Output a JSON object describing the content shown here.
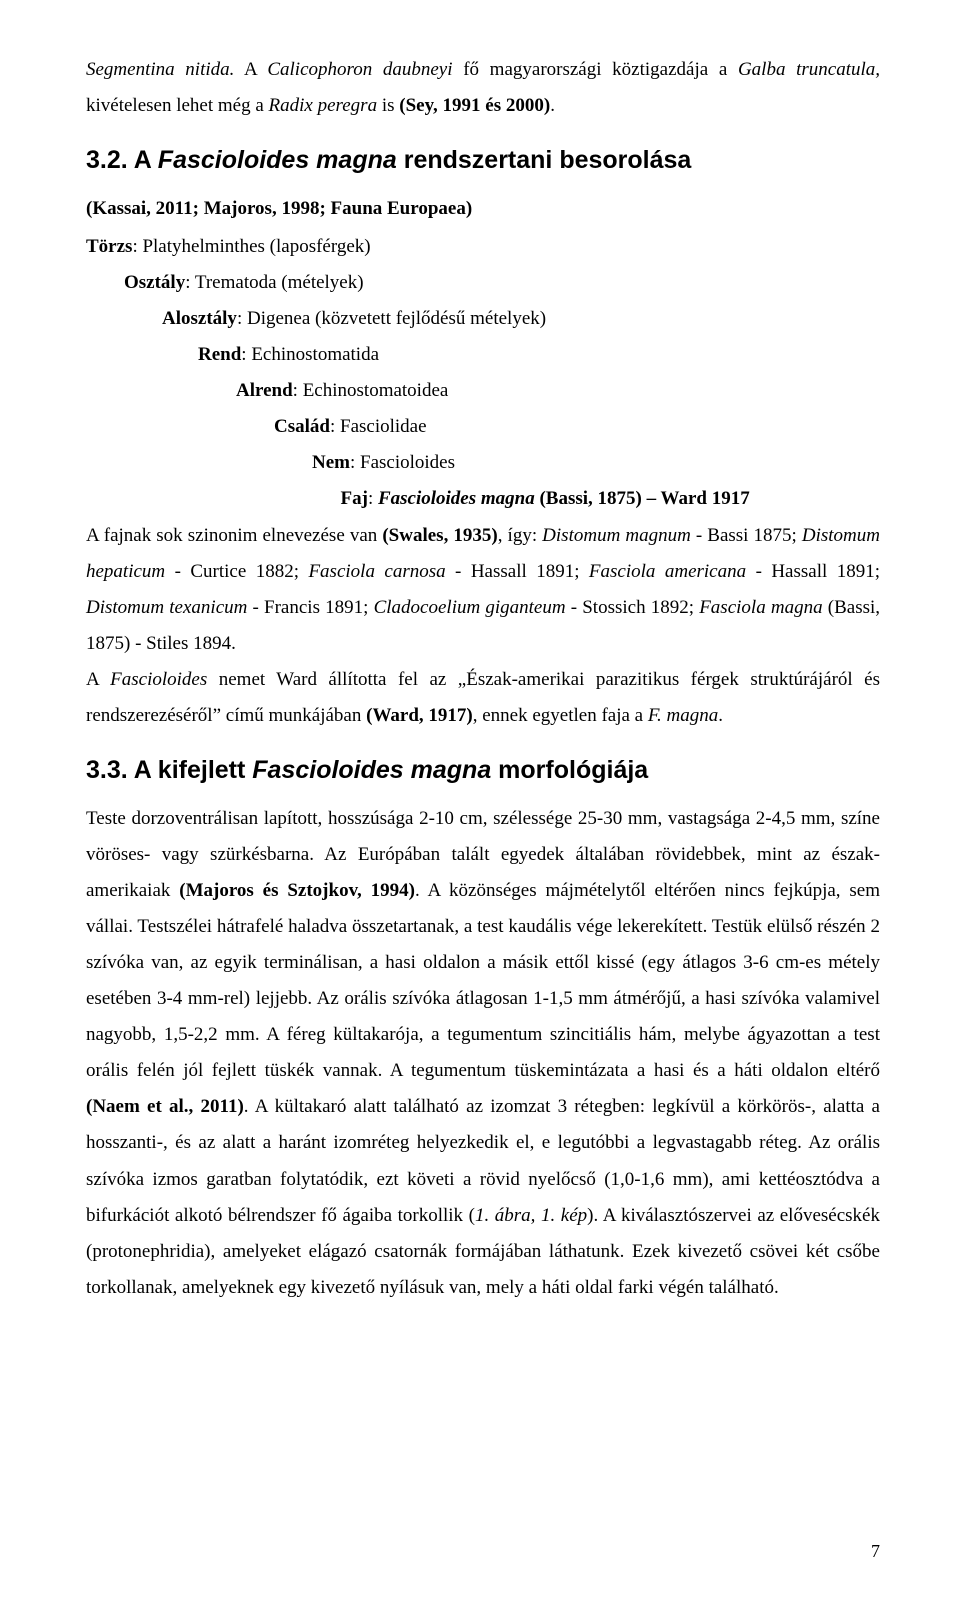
{
  "intro": {
    "p1_a": "Segmentina nitida.",
    "p1_b": " A ",
    "p1_c": "Calicophoron daubneyi",
    "p1_d": " fő magyarországi köztigazdája a ",
    "p1_e": "Galba truncatula,",
    "p1_f": " kivételesen lehet még a ",
    "p1_g": "Radix peregra",
    "p1_h": " is ",
    "p1_i": "(Sey, 1991 és 2000)",
    "p1_j": "."
  },
  "section32": {
    "number": "3.2. A ",
    "title_italic": "Fascioloides magna",
    "title_rest": " rendszertani besorolása",
    "reference_a": "(Kassai, 2011; Majoros, 1998; Fauna Europaea)",
    "tax": {
      "torzs_label": "Törzs",
      "torzs_val": ": Platyhelminthes (laposférgek)",
      "osztaly_label": "Osztály",
      "osztaly_val": ": Trematoda (mételyek)",
      "alosztaly_label": "Alosztály",
      "alosztaly_val": ": Digenea (közvetett fejlődésű mételyek)",
      "rend_label": "Rend",
      "rend_val": ": Echinostomatida",
      "alrend_label": "Alrend",
      "alrend_val": ": Echinostomatoidea",
      "csalad_label": "Család",
      "csalad_val": ": Fasciolidae",
      "nem_label": "Nem",
      "nem_val": ": Fascioloides",
      "faj_label": "Faj",
      "faj_val_a": ": ",
      "faj_val_b": "Fascioloides magna",
      "faj_val_c": " (Bassi, 1875) – Ward 1917"
    },
    "p2_a": "A fajnak sok szinonim elnevezése van ",
    "p2_b": "(Swales, 1935)",
    "p2_c": ", így: ",
    "p2_d": "Distomum magnum",
    "p2_e": " - Bassi 1875; ",
    "p2_f": "Distomum hepaticum",
    "p2_g": " - Curtice 1882; ",
    "p2_h": "Fasciola carnosa",
    "p2_i": " - Hassall 1891; ",
    "p2_j": "Fasciola americana",
    "p2_k": " - Hassall 1891; ",
    "p2_l": "Distomum texanicum",
    "p2_m": " - Francis 1891; ",
    "p2_n": "Cladocoelium giganteum",
    "p2_o": " - Stossich 1892; ",
    "p2_p": "Fasciola magna",
    "p2_q": " (Bassi, 1875) - Stiles 1894.",
    "p3_a": "A ",
    "p3_b": "Fascioloides",
    "p3_c": " nemet Ward állította fel az „Észak-amerikai parazitikus férgek struktúrájáról és rendszerezéséről” című munkájában ",
    "p3_d": "(Ward, 1917)",
    "p3_e": ", ennek egyetlen faja a ",
    "p3_f": "F. magna",
    "p3_g": "."
  },
  "section33": {
    "number": "3.3. A kifejlett ",
    "title_italic": "Fascioloides magna",
    "title_rest": " morfológiája",
    "p1_a": "Teste dorzoventrálisan lapított, hosszúsága 2-10 cm, szélessége 25-30 mm, vastagsága 2-4,5 mm, színe vöröses- vagy szürkésbarna. Az Európában talált egyedek általában rövidebbek, mint az észak-amerikaiak ",
    "p1_b": "(Majoros és Sztojkov, 1994)",
    "p1_c": ". A közönséges májmételytől eltérően nincs fejkúpja, sem vállai. Testszélei hátrafelé haladva összetartanak, a test kaudális vége lekerekített. Testük elülső részén 2 szívóka van, az egyik terminálisan, a hasi oldalon a másik ettől kissé (egy átlagos 3-6 cm-es métely esetében 3-4 mm-rel) lejjebb. Az orális szívóka átlagosan 1-1,5 mm átmérőjű, a hasi szívóka valamivel nagyobb, 1,5-2,2 mm. A féreg kültakarója, a tegumentum szincitiális hám, melybe ágyazottan a test orális felén jól fejlett tüskék vannak. A tegumentum tüskemintázata a hasi és a háti oldalon eltérő ",
    "p1_d": "(Naem et al., 2011)",
    "p1_e": ". A kültakaró alatt található az izomzat 3 rétegben: legkívül a körkörös-, alatta a hosszanti-, és az alatt a haránt izomréteg helyezkedik el, e legutóbbi a legvastagabb réteg. Az orális szívóka izmos garatban folytatódik, ezt követi a rövid nyelőcső (1,0-1,6 mm), ami kettéosztódva a bifurkációt alkotó bélrendszer fő ágaiba torkollik (",
    "p1_f": "1. ábra, 1. kép",
    "p1_g": "). A kiválasztószervei az elővesécskék (protonephridia), amelyeket elágazó csatornák formájában láthatunk. Ezek kivezető csövei két csőbe torkollanak, amelyeknek egy kivezető nyílásuk van, mely a háti oldal farki végén található."
  },
  "pageNumber": "7"
}
